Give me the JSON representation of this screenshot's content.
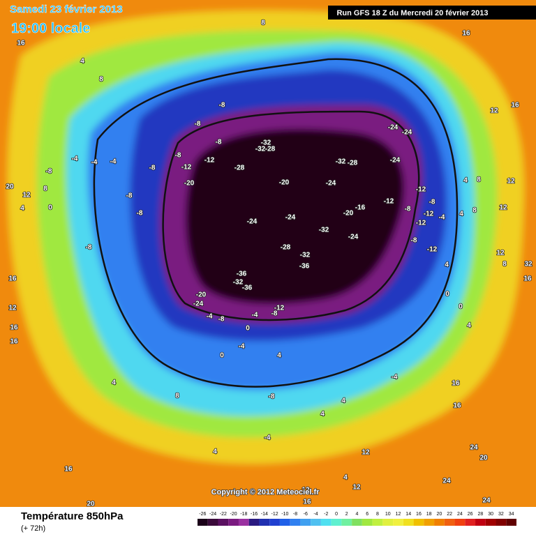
{
  "header": {
    "date": "Samedi 23 février 2013",
    "time": "19:00 locale",
    "run": "Run GFS 18 Z du Mercredi 20 février 2013"
  },
  "copyright": "Copyright © 2012 Meteociel.fr",
  "footer": {
    "title": "Température 850hPa",
    "lead": "(+ 72h)"
  },
  "legend": {
    "ticks": [
      -26,
      -24,
      -22,
      -20,
      -18,
      -16,
      -14,
      -12,
      -10,
      -8,
      -6,
      -4,
      -2,
      0,
      2,
      4,
      6,
      8,
      10,
      12,
      14,
      16,
      18,
      20,
      22,
      24,
      26,
      28,
      30,
      32,
      34
    ],
    "colors": [
      "#1a0018",
      "#3a0a3a",
      "#5a1060",
      "#7a1a80",
      "#9a30a0",
      "#2a1a80",
      "#2030b0",
      "#2040d0",
      "#2060e8",
      "#3080f0",
      "#40a0f0",
      "#50c0f0",
      "#50e0f0",
      "#60f0d0",
      "#70f0a0",
      "#80e060",
      "#a0e840",
      "#c0f040",
      "#e0f040",
      "#f0f040",
      "#f0e020",
      "#f0c000",
      "#f0a000",
      "#f08000",
      "#f06010",
      "#f04010",
      "#e02020",
      "#c00010",
      "#a00000",
      "#800000",
      "#600000"
    ]
  },
  "map_labels": [
    "8",
    "16",
    "4",
    "16",
    "8",
    "16",
    "12",
    "-8",
    "-8",
    "-8",
    "-32",
    "-32",
    "-28",
    "-24",
    "-24",
    "-24",
    "-32",
    "-28",
    "-28",
    "-12",
    "-12",
    "-8",
    "-8",
    "-4",
    "-4",
    "-4",
    "-8",
    "-20",
    "-20",
    "-24",
    "-12",
    "-12",
    "-16",
    "-20",
    "-8",
    "-8",
    "-24",
    "-24",
    "-32",
    "-24",
    "-8",
    "-12",
    "-12",
    "-8",
    "-8",
    "-12",
    "-28",
    "-32",
    "-36",
    "-36",
    "-32",
    "-36",
    "-20",
    "-24",
    "-12",
    "-8",
    "-4",
    "-8",
    "-4",
    "0",
    "-4",
    "0",
    "-8",
    "0",
    "4",
    "8",
    "16",
    "16",
    "16",
    "12",
    "20",
    "12",
    "4",
    "0",
    "0",
    "4",
    "12",
    "8",
    "32",
    "16",
    "8",
    "4",
    "12",
    "12",
    "8",
    "4",
    "-4",
    "-8",
    "4",
    "-4",
    "4",
    "16",
    "16",
    "24",
    "20",
    "24",
    "24",
    "12",
    "16",
    "20",
    "16",
    "8",
    "4",
    "4",
    "12",
    "12",
    "4",
    "-4",
    "4"
  ]
}
